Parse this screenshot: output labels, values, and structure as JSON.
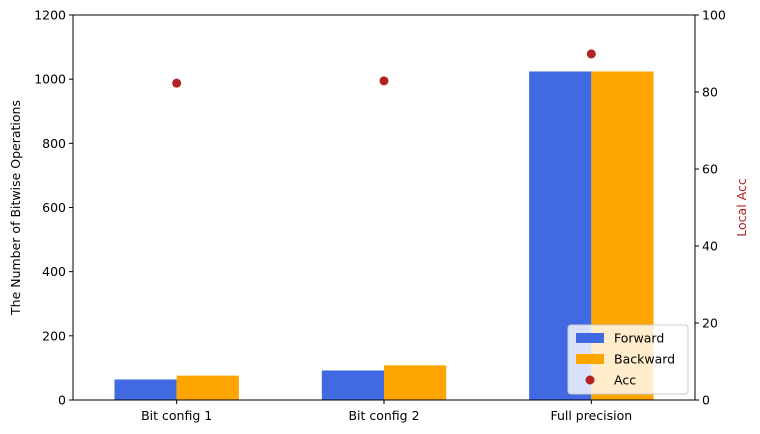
{
  "chart_data": {
    "type": "bar",
    "categories": [
      "Bit config 1",
      "Bit config 2",
      "Full precision"
    ],
    "series": [
      {
        "name": "Forward",
        "axis": "left",
        "values": [
          64,
          92,
          1024
        ],
        "color": "#4169e1"
      },
      {
        "name": "Backward",
        "axis": "left",
        "values": [
          76,
          108,
          1024
        ],
        "color": "#ffa500"
      }
    ],
    "scatter": {
      "name": "Acc",
      "axis": "right",
      "values": [
        82.3,
        82.9,
        89.9
      ],
      "color": "#b22222"
    },
    "ylabel": "The Number of Bitwise Operations",
    "ylim": [
      0,
      1200
    ],
    "yticks": [
      0,
      200,
      400,
      600,
      800,
      1000,
      1200
    ],
    "y2label": "Local Acc",
    "y2label_color": "#b22222",
    "y2lim": [
      0,
      100
    ],
    "y2ticks": [
      0,
      20,
      40,
      60,
      80,
      100
    ],
    "legend_position": "lower-right",
    "grid": false
  }
}
